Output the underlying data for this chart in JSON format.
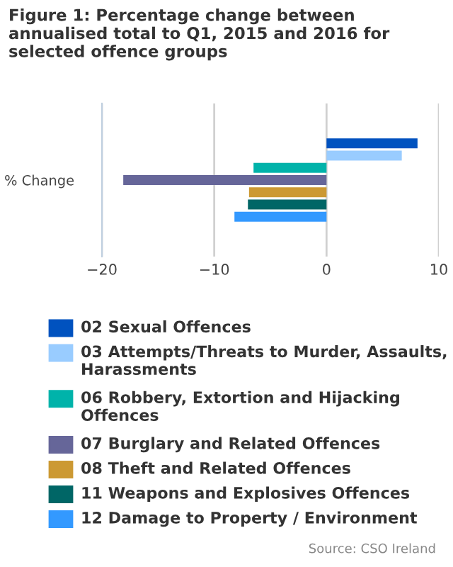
{
  "chart_data": {
    "type": "bar",
    "orientation": "horizontal",
    "title": "Figure 1: Percentage change between annualised total to Q1, 2015 and 2016 for selected offence groups",
    "categories": [
      "% Change"
    ],
    "series": [
      {
        "name": "02 Sexual Offences",
        "color": "#0052bf",
        "values": [
          8.1
        ]
      },
      {
        "name": "03 Attempts/Threats to Murder, Assaults, Harassments",
        "color": "#99ccff",
        "values": [
          6.7
        ]
      },
      {
        "name": "06 Robbery, Extortion and Hijacking Offences",
        "color": "#00b3aa",
        "values": [
          -6.5
        ]
      },
      {
        "name": "07 Burglary and Related Offences",
        "color": "#666699",
        "values": [
          -18.1
        ]
      },
      {
        "name": "08 Theft and Related Offences",
        "color": "#cc9933",
        "values": [
          -6.9
        ]
      },
      {
        "name": "11 Weapons and Explosives Offences",
        "color": "#006666",
        "values": [
          -7.0
        ]
      },
      {
        "name": "12 Damage to Property / Environment",
        "color": "#3399ff",
        "values": [
          -8.2
        ]
      }
    ],
    "xlim": [
      -20,
      10
    ],
    "xticks": [
      {
        "value": -20,
        "label": "−20"
      },
      {
        "value": -10,
        "label": "−10"
      },
      0,
      10
    ],
    "grid": "x",
    "legend": "bottom",
    "annotations": [
      "Source: CSO Ireland"
    ]
  }
}
